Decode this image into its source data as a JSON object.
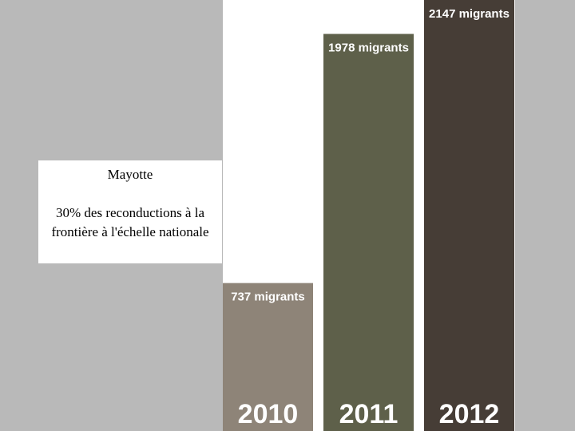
{
  "chart_data": {
    "type": "bar",
    "categories": [
      "2010",
      "2011",
      "2012"
    ],
    "values": [
      737,
      1978,
      2147
    ],
    "value_labels": [
      "737 migrants",
      "1978 migrants",
      "2147 migrants"
    ],
    "colors": [
      "#8e8478",
      "#5e604a",
      "#463d36"
    ],
    "ylim": [
      0,
      2147
    ],
    "annotation": {
      "title": "Mayotte",
      "text": "30% des reconductions à la frontière à l'échelle nationale"
    }
  }
}
